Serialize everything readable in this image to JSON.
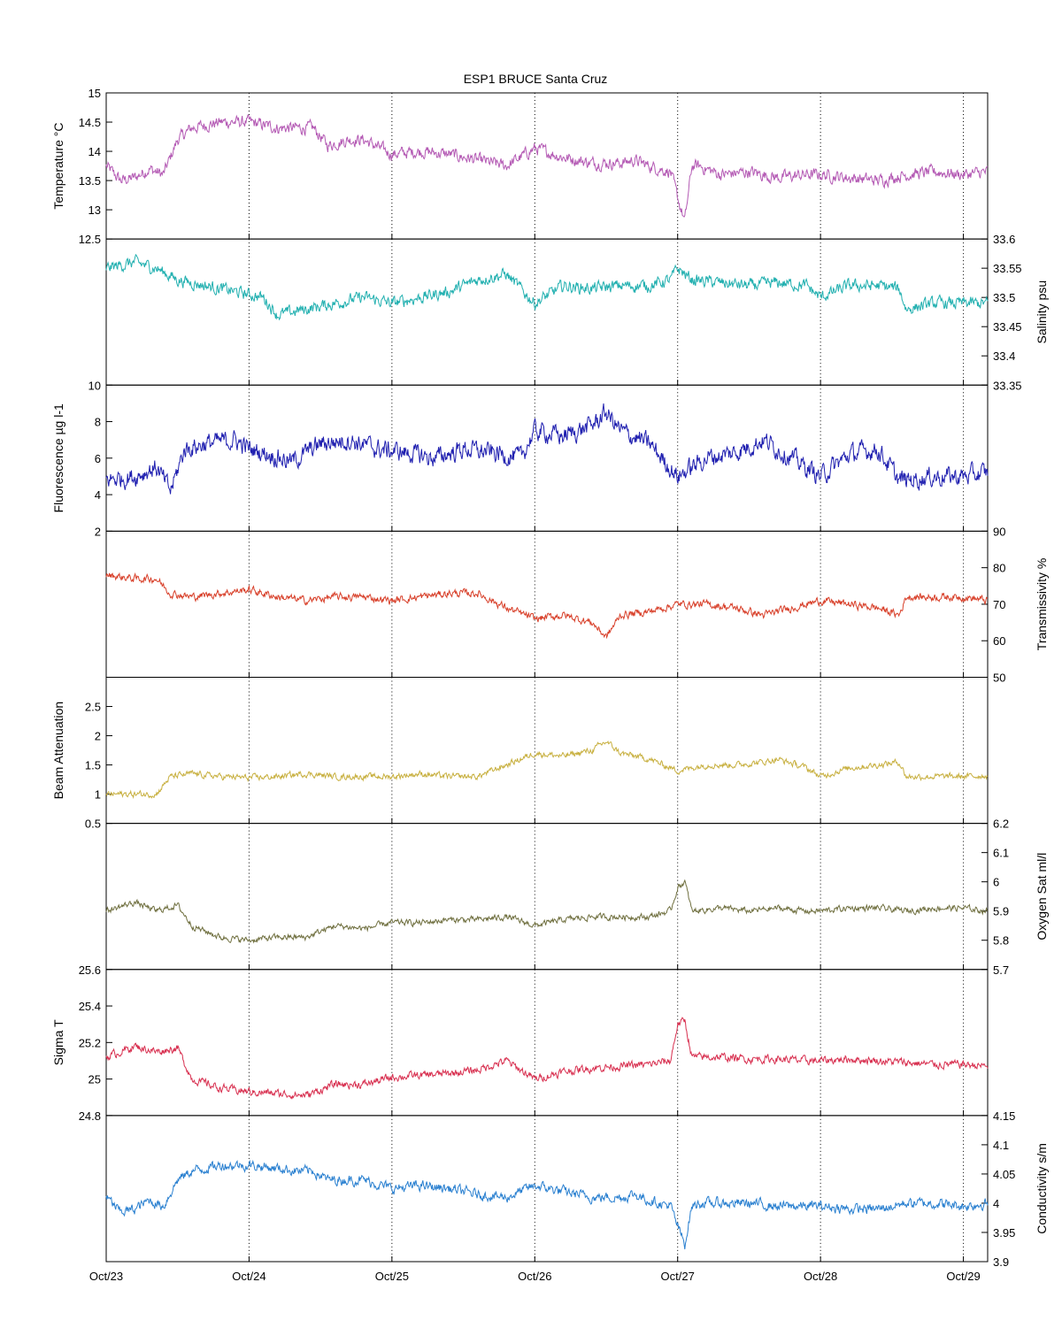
{
  "chart_data": {
    "type": "line",
    "title": "ESP1 BRUCE Santa Cruz",
    "x_axis": {
      "type": "date",
      "ticks": [
        "Oct/23",
        "Oct/24",
        "Oct/25",
        "Oct/26",
        "Oct/27",
        "Oct/28",
        "Oct/29"
      ],
      "xlim_days": [
        0,
        6.17
      ],
      "grid": "vertical dotted at each day"
    },
    "colors": {
      "temperature": "#b45ab4",
      "salinity": "#22b0b0",
      "fluorescence": "#2020b0",
      "transmissivity": "#d8402a",
      "beam_attenuation": "#c8b040",
      "oxygen_sat": "#707040",
      "sigma_t": "#d83050",
      "conductivity": "#2a80d0"
    },
    "panels": [
      {
        "key": "temperature",
        "ylabel": "Temperature °C",
        "side": "left",
        "ylim": [
          12.5,
          15
        ],
        "yticks": [
          "12.5",
          "13",
          "13.5",
          "14",
          "14.5",
          "15"
        ],
        "series": {
          "x": [
            0,
            0.1,
            0.2,
            0.3,
            0.4,
            0.5,
            0.6,
            0.8,
            1.0,
            1.2,
            1.35,
            1.45,
            1.55,
            1.7,
            1.8,
            2.0,
            2.2,
            2.4,
            2.6,
            2.8,
            3.0,
            3.2,
            3.4,
            3.6,
            3.7,
            3.8,
            3.95,
            4.0,
            4.05,
            4.1,
            4.15,
            4.3,
            4.5,
            4.7,
            4.9,
            5.0,
            5.2,
            5.4,
            5.6,
            5.8,
            6.0,
            6.17
          ],
          "y": [
            13.75,
            13.5,
            13.55,
            13.7,
            13.6,
            14.2,
            14.4,
            14.5,
            14.5,
            14.4,
            14.4,
            14.4,
            14.1,
            14.2,
            14.2,
            13.95,
            14.0,
            13.95,
            13.85,
            13.75,
            14.05,
            13.9,
            13.8,
            13.8,
            13.85,
            13.75,
            13.65,
            13.2,
            12.8,
            13.75,
            13.75,
            13.6,
            13.65,
            13.55,
            13.6,
            13.6,
            13.55,
            13.5,
            13.6,
            13.65,
            13.6,
            13.65
          ],
          "noise": 0.12
        }
      },
      {
        "key": "salinity",
        "ylabel": "Salinity psu",
        "side": "right",
        "ylim": [
          33.35,
          33.6
        ],
        "yticks": [
          "33.35",
          "33.4",
          "33.45",
          "33.5",
          "33.55",
          "33.6"
        ],
        "series": {
          "x": [
            0,
            0.2,
            0.35,
            0.5,
            0.7,
            0.9,
            1.1,
            1.2,
            1.4,
            1.6,
            1.8,
            2.0,
            2.2,
            2.4,
            2.6,
            2.8,
            3.0,
            3.2,
            3.4,
            3.6,
            3.8,
            3.95,
            4.0,
            4.1,
            4.3,
            4.5,
            4.7,
            4.9,
            5.0,
            5.2,
            5.4,
            5.55,
            5.6,
            5.8,
            6.0,
            6.17
          ],
          "y": [
            33.55,
            33.56,
            33.55,
            33.53,
            33.52,
            33.51,
            33.5,
            33.47,
            33.48,
            33.49,
            33.5,
            33.49,
            33.5,
            33.51,
            33.53,
            33.54,
            33.49,
            33.52,
            33.515,
            33.52,
            33.52,
            33.53,
            33.55,
            33.53,
            33.525,
            33.52,
            33.525,
            33.52,
            33.5,
            33.52,
            33.52,
            33.515,
            33.48,
            33.49,
            33.49,
            33.49
          ],
          "noise": 0.012
        }
      },
      {
        "key": "fluorescence",
        "ylabel": "Fluorescence µg l-1",
        "side": "left",
        "ylim": [
          2,
          10
        ],
        "yticks": [
          "2",
          "4",
          "6",
          "8",
          "10"
        ],
        "series": {
          "x": [
            0,
            0.2,
            0.35,
            0.45,
            0.55,
            0.7,
            0.9,
            1.0,
            1.15,
            1.3,
            1.5,
            1.7,
            1.9,
            2.1,
            2.3,
            2.5,
            2.7,
            2.9,
            3.0,
            3.2,
            3.4,
            3.5,
            3.6,
            3.8,
            4.0,
            4.2,
            4.4,
            4.6,
            4.8,
            5.0,
            5.2,
            5.4,
            5.55,
            5.6,
            5.8,
            6.0,
            6.17
          ],
          "y": [
            4.8,
            5.0,
            5.5,
            4.2,
            6.5,
            6.8,
            7.0,
            6.5,
            6.2,
            5.8,
            6.8,
            7.0,
            6.5,
            6.3,
            6.0,
            6.5,
            6.3,
            6.0,
            7.5,
            7.2,
            7.8,
            8.5,
            7.5,
            6.8,
            5.0,
            6.0,
            6.3,
            7.0,
            6.0,
            5.0,
            6.2,
            6.5,
            4.8,
            4.8,
            5.0,
            5.0,
            5.2
          ],
          "noise": 0.6
        }
      },
      {
        "key": "transmissivity",
        "ylabel": "Transmissivity %",
        "side": "right",
        "ylim": [
          50,
          90
        ],
        "yticks": [
          "50",
          "60",
          "70",
          "80",
          "90"
        ],
        "series": {
          "x": [
            0,
            0.2,
            0.35,
            0.45,
            0.6,
            0.8,
            1.0,
            1.2,
            1.4,
            1.6,
            1.8,
            2.0,
            2.2,
            2.4,
            2.6,
            2.8,
            3.0,
            3.2,
            3.4,
            3.5,
            3.6,
            3.8,
            4.0,
            4.2,
            4.4,
            4.6,
            4.7,
            4.9,
            5.0,
            5.2,
            5.4,
            5.55,
            5.6,
            5.8,
            6.0,
            6.17
          ],
          "y": [
            78,
            77,
            77,
            73,
            72,
            73,
            74,
            72,
            71,
            72,
            72,
            71,
            72,
            73,
            73,
            69,
            66,
            67,
            65,
            61,
            67,
            68,
            70,
            70,
            69,
            67,
            68,
            70,
            71,
            70,
            69,
            67,
            72,
            72,
            72,
            71
          ],
          "noise": 1.2
        }
      },
      {
        "key": "beam_attenuation",
        "ylabel": "Beam Attenuation",
        "side": "left",
        "ylim": [
          0.5,
          3
        ],
        "yticks": [
          "0.5",
          "1",
          "1.5",
          "2",
          "2.5"
        ],
        "series": {
          "x": [
            0,
            0.2,
            0.35,
            0.45,
            0.6,
            0.8,
            1.0,
            1.2,
            1.4,
            1.6,
            1.8,
            2.0,
            2.2,
            2.4,
            2.6,
            2.8,
            3.0,
            3.2,
            3.4,
            3.5,
            3.6,
            3.8,
            4.0,
            4.2,
            4.4,
            4.6,
            4.7,
            4.9,
            5.0,
            5.2,
            5.4,
            5.55,
            5.6,
            5.8,
            6.0,
            6.17
          ],
          "y": [
            1.0,
            1.0,
            1.0,
            1.3,
            1.35,
            1.3,
            1.28,
            1.3,
            1.35,
            1.3,
            1.3,
            1.3,
            1.35,
            1.3,
            1.3,
            1.5,
            1.7,
            1.65,
            1.75,
            1.9,
            1.7,
            1.6,
            1.4,
            1.5,
            1.5,
            1.55,
            1.6,
            1.45,
            1.3,
            1.45,
            1.5,
            1.55,
            1.3,
            1.3,
            1.3,
            1.32
          ],
          "noise": 0.06
        }
      },
      {
        "key": "oxygen_sat",
        "ylabel": "Oxygen Sat ml/l",
        "side": "right",
        "ylim": [
          5.7,
          6.2
        ],
        "yticks": [
          "5.7",
          "5.8",
          "5.9",
          "6",
          "6.1",
          "6.2"
        ],
        "series": {
          "x": [
            0,
            0.2,
            0.35,
            0.5,
            0.6,
            0.8,
            1.0,
            1.2,
            1.4,
            1.6,
            1.8,
            2.0,
            2.2,
            2.4,
            2.6,
            2.8,
            3.0,
            3.2,
            3.4,
            3.6,
            3.8,
            3.95,
            4.0,
            4.05,
            4.1,
            4.3,
            4.5,
            4.7,
            4.9,
            5.0,
            5.2,
            5.4,
            5.6,
            5.8,
            6.0,
            6.17
          ],
          "y": [
            5.9,
            5.93,
            5.9,
            5.92,
            5.85,
            5.81,
            5.8,
            5.81,
            5.81,
            5.85,
            5.84,
            5.86,
            5.86,
            5.87,
            5.87,
            5.88,
            5.85,
            5.87,
            5.88,
            5.88,
            5.88,
            5.9,
            5.98,
            6.0,
            5.9,
            5.91,
            5.9,
            5.91,
            5.9,
            5.9,
            5.91,
            5.91,
            5.9,
            5.91,
            5.91,
            5.9
          ],
          "noise": 0.012
        }
      },
      {
        "key": "sigma_t",
        "ylabel": "Sigma T",
        "side": "left",
        "ylim": [
          24.8,
          25.6
        ],
        "yticks": [
          "24.8",
          "25",
          "25.2",
          "25.4",
          "25.6"
        ],
        "series": {
          "x": [
            0,
            0.2,
            0.35,
            0.5,
            0.6,
            0.8,
            1.0,
            1.2,
            1.4,
            1.6,
            1.8,
            2.0,
            2.2,
            2.4,
            2.6,
            2.8,
            3.0,
            3.2,
            3.4,
            3.6,
            3.8,
            3.95,
            4.0,
            4.05,
            4.1,
            4.3,
            4.5,
            4.7,
            4.9,
            5.0,
            5.2,
            5.4,
            5.6,
            5.8,
            6.0,
            6.17
          ],
          "y": [
            25.12,
            25.18,
            25.15,
            25.17,
            25.0,
            24.95,
            24.93,
            24.92,
            24.91,
            24.97,
            24.97,
            25.01,
            25.02,
            25.03,
            25.05,
            25.1,
            25.0,
            25.04,
            25.06,
            25.07,
            25.08,
            25.1,
            25.3,
            25.32,
            25.12,
            25.12,
            25.11,
            25.11,
            25.1,
            25.1,
            25.11,
            25.1,
            25.09,
            25.08,
            25.08,
            25.07
          ],
          "noise": 0.025
        }
      },
      {
        "key": "conductivity",
        "ylabel": "Conductivity s/m",
        "side": "right",
        "ylim": [
          3.9,
          4.15
        ],
        "yticks": [
          "3.9",
          "3.95",
          "4",
          "4.05",
          "4.1",
          "4.15"
        ],
        "series": {
          "x": [
            0,
            0.1,
            0.2,
            0.3,
            0.4,
            0.5,
            0.6,
            0.8,
            1.0,
            1.2,
            1.35,
            1.45,
            1.55,
            1.7,
            1.8,
            2.0,
            2.2,
            2.4,
            2.6,
            2.8,
            3.0,
            3.2,
            3.4,
            3.6,
            3.7,
            3.8,
            3.95,
            4.0,
            4.05,
            4.1,
            4.15,
            4.3,
            4.5,
            4.7,
            4.9,
            5.0,
            5.2,
            5.4,
            5.6,
            5.8,
            6.0,
            6.17
          ],
          "y": [
            4.01,
            3.985,
            3.99,
            4.005,
            3.995,
            4.04,
            4.055,
            4.065,
            4.065,
            4.06,
            4.055,
            4.055,
            4.04,
            4.04,
            4.04,
            4.025,
            4.03,
            4.025,
            4.015,
            4.01,
            4.03,
            4.02,
            4.01,
            4.01,
            4.015,
            4.005,
            3.995,
            3.96,
            3.93,
            3.995,
            4.0,
            4.0,
            4.0,
            3.995,
            3.995,
            3.995,
            3.99,
            3.99,
            4.0,
            4.0,
            3.995,
            4.0
          ],
          "noise": 0.01
        }
      }
    ]
  }
}
